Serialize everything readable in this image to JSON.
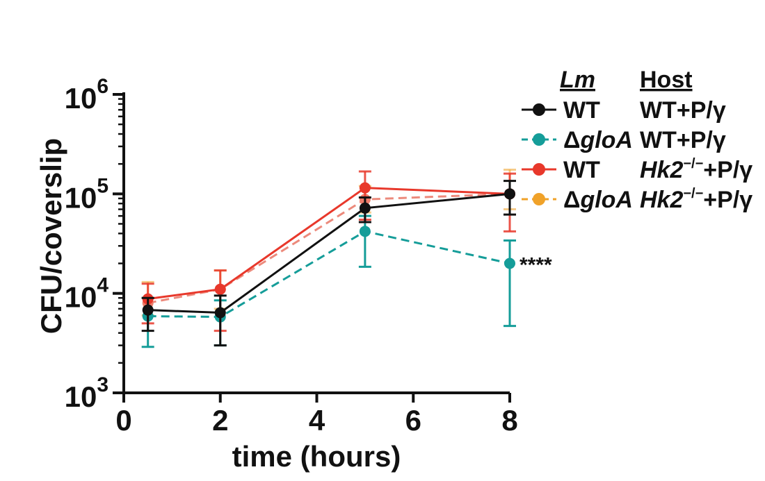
{
  "chart_data": {
    "type": "line",
    "title": "",
    "xlabel": "time (hours)",
    "ylabel": "CFU/coverslip",
    "xlim": [
      0,
      8
    ],
    "ylim": [
      1000,
      1000000
    ],
    "yscale": "log",
    "xticks": [
      "0",
      "2",
      "4",
      "6",
      "8"
    ],
    "yticks": [
      {
        "base": "10",
        "exp": "3"
      },
      {
        "base": "10",
        "exp": "4"
      },
      {
        "base": "10",
        "exp": "5"
      },
      {
        "base": "10",
        "exp": "6"
      }
    ],
    "grid": false,
    "legend_position": "top-right",
    "legend_headers": {
      "lm": "Lm",
      "host": "Host"
    },
    "x": [
      0.5,
      2,
      5,
      8
    ],
    "series": [
      {
        "lm_prefix": "",
        "lm_italic": "",
        "lm_plain": "WT",
        "host_italic": "",
        "host_sup": "",
        "host_plain": "WT+P/γ",
        "color": "#111111",
        "dash": false,
        "opacity": 1,
        "values": [
          6800,
          6400,
          72000,
          100000
        ],
        "err_low": [
          4200,
          3000,
          52000,
          62000
        ],
        "err_high": [
          9000,
          9500,
          92000,
          135000
        ]
      },
      {
        "lm_prefix": "Δ",
        "lm_italic": "gloA",
        "lm_plain": "",
        "host_italic": "",
        "host_sup": "",
        "host_plain": "WT+P/γ",
        "color": "#159d99",
        "dash": true,
        "opacity": 1,
        "values": [
          5900,
          5800,
          42000,
          20000
        ],
        "err_low": [
          2900,
          3000,
          18500,
          4700
        ],
        "err_high": [
          9000,
          8500,
          60000,
          34000
        ]
      },
      {
        "lm_prefix": "",
        "lm_italic": "",
        "lm_plain": "WT",
        "host_italic": "Hk2",
        "host_sup": "−/−",
        "host_plain": "+P/γ",
        "color": "#e8382b",
        "dash": false,
        "opacity": 1,
        "values": [
          8800,
          11000,
          115000,
          100000
        ],
        "err_low": [
          5000,
          4200,
          55000,
          42000
        ],
        "err_high": [
          12500,
          17000,
          168000,
          160000
        ]
      },
      {
        "lm_prefix": "Δ",
        "lm_italic": "gloA",
        "lm_plain": "",
        "host_italic": "Hk2",
        "host_sup": "−/−",
        "host_plain": "+P/γ",
        "color": "#f0a229",
        "dash": true,
        "opacity": 1,
        "values": [
          8000,
          11000,
          88000,
          100000
        ],
        "err_low": [
          6000,
          7000,
          65000,
          70000
        ],
        "err_high": [
          13000,
          17000,
          120000,
          175000
        ]
      }
    ],
    "annotations": [
      {
        "text": "****",
        "x": 8,
        "series": 1
      }
    ]
  }
}
